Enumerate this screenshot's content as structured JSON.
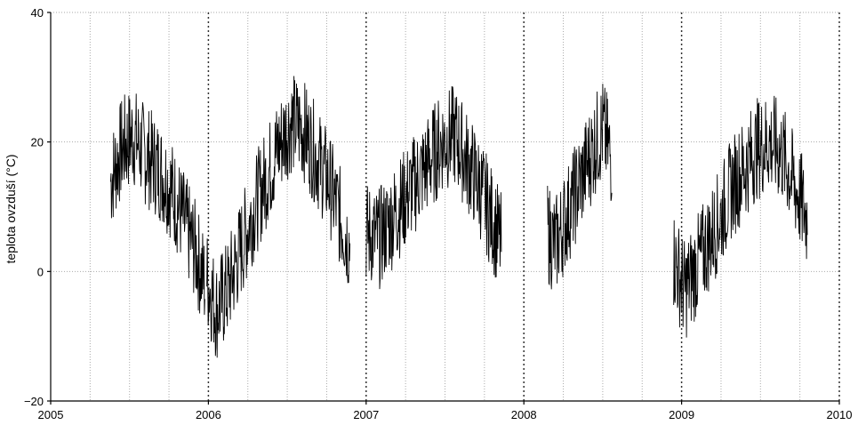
{
  "chart_data": {
    "type": "line",
    "title": "",
    "xlabel": "",
    "ylabel": "teplota ovzduší (°C)",
    "xlim": [
      2005,
      2010
    ],
    "ylim": [
      -20,
      40
    ],
    "x_ticks": [
      "2005",
      "2006",
      "2007",
      "2008",
      "2009",
      "2010"
    ],
    "y_ticks": [
      "−20",
      "0",
      "20",
      "40"
    ],
    "grid": true,
    "legend": "none",
    "colors": {
      "line": "#000000",
      "grid_major": "#333333",
      "grid_minor": "#aaaaaa",
      "axis": "#000000"
    },
    "segments": [
      {
        "x": [
          2005.38,
          2005.45,
          2005.52,
          2005.6,
          2005.68,
          2005.76,
          2005.84,
          2005.92,
          2005.98
        ],
        "y": [
          14,
          19,
          21,
          18,
          16,
          13,
          8,
          3,
          -2
        ]
      },
      {
        "x": [
          2005.99,
          2006.05,
          2006.12,
          2006.2,
          2006.28,
          2006.36,
          2006.44,
          2006.52,
          2006.6,
          2006.68,
          2006.76,
          2006.84,
          2006.9
        ],
        "y": [
          -1,
          -6,
          -3,
          3,
          9,
          14,
          19,
          23,
          22,
          18,
          14,
          8,
          4
        ]
      },
      {
        "x": [
          2007.0,
          2007.08,
          2007.16,
          2007.24,
          2007.32,
          2007.4,
          2007.48,
          2007.56,
          2007.64,
          2007.72,
          2007.8,
          2007.86
        ],
        "y": [
          6,
          5,
          8,
          11,
          14,
          17,
          20,
          21,
          17,
          13,
          8,
          4
        ]
      },
      {
        "x": [
          2008.15,
          2008.2,
          2008.28,
          2008.36,
          2008.44,
          2008.5,
          2008.56
        ],
        "y": [
          6,
          4,
          9,
          14,
          19,
          22,
          17
        ]
      },
      {
        "x": [
          2008.95,
          2009.02,
          2009.08,
          2009.16,
          2009.24,
          2009.32,
          2009.4,
          2009.48,
          2009.56,
          2009.64,
          2009.72,
          2009.8
        ],
        "y": [
          2,
          -3,
          0,
          4,
          8,
          13,
          16,
          19,
          20,
          18,
          13,
          8
        ]
      }
    ]
  }
}
